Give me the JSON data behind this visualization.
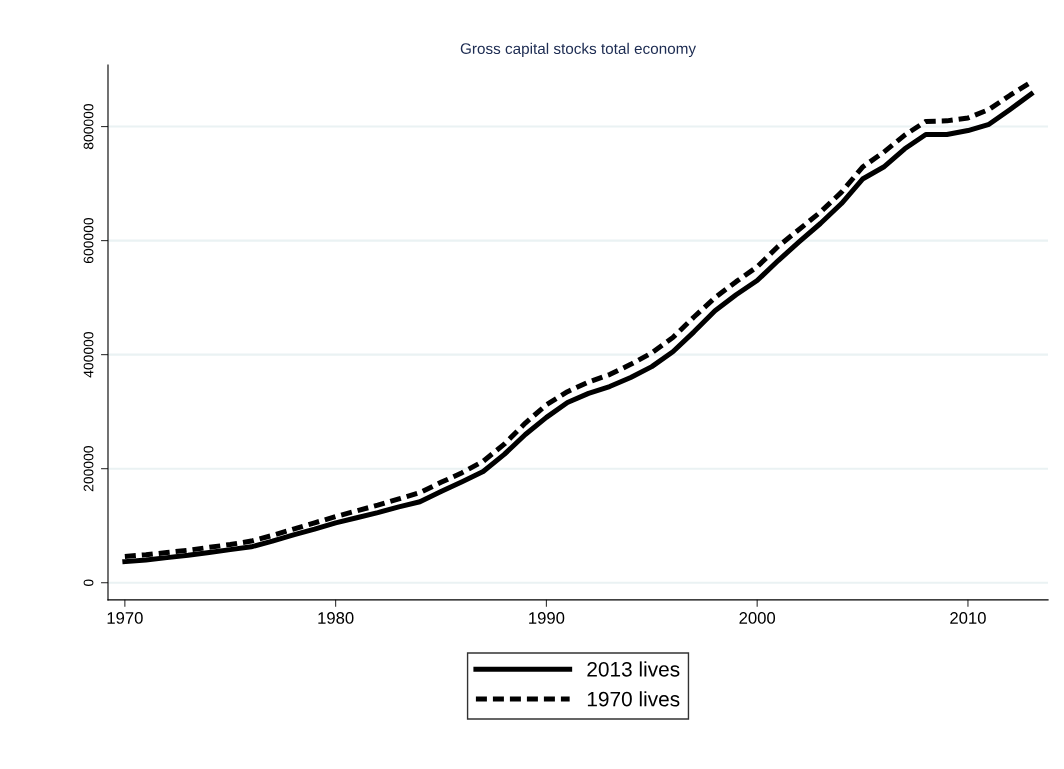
{
  "chart_data": {
    "type": "line",
    "title": "Gross capital stocks total economy",
    "x": [
      1970,
      1971,
      1972,
      1973,
      1974,
      1975,
      1976,
      1977,
      1978,
      1979,
      1980,
      1981,
      1982,
      1983,
      1984,
      1985,
      1986,
      1987,
      1988,
      1989,
      1990,
      1991,
      1992,
      1993,
      1994,
      1995,
      1996,
      1997,
      1998,
      1999,
      2000,
      2001,
      2002,
      2003,
      2004,
      2005,
      2006,
      2007,
      2008,
      2009,
      2010,
      2011,
      2012,
      2013
    ],
    "series": [
      {
        "name": "2013 lives",
        "color": "#000000",
        "line_style": "solid",
        "values": [
          37000,
          40000,
          44000,
          48000,
          53000,
          58000,
          63000,
          73000,
          84000,
          94000,
          105000,
          114000,
          123000,
          133000,
          142000,
          160000,
          177000,
          195000,
          225000,
          260000,
          290000,
          316000,
          332000,
          344000,
          360000,
          379000,
          405000,
          440000,
          477000,
          505000,
          530000,
          565000,
          598000,
          630000,
          665000,
          708000,
          729000,
          761000,
          786000,
          786000,
          793000,
          804000,
          830000,
          857000
        ]
      },
      {
        "name": "1970 lives",
        "color": "#000000",
        "line_style": "dashed",
        "values": [
          46000,
          49000,
          53000,
          57000,
          62000,
          67000,
          73000,
          83000,
          94000,
          105000,
          116000,
          126000,
          136000,
          147000,
          158000,
          176000,
          193000,
          213000,
          243000,
          280000,
          312000,
          335000,
          352000,
          365000,
          383000,
          403000,
          430000,
          466000,
          500000,
          528000,
          554000,
          590000,
          620000,
          650000,
          685000,
          729000,
          755000,
          785000,
          809000,
          810000,
          815000,
          830000,
          855000,
          878000
        ]
      }
    ],
    "xlim": [
      1969.2,
      2013.8
    ],
    "xticks": [
      1970,
      1980,
      1990,
      2000,
      2010
    ],
    "ylim": [
      -30000,
      908000
    ],
    "yticks": [
      0,
      200000,
      400000,
      600000,
      800000
    ],
    "grid": "y",
    "legend": "bottom",
    "marker": "none"
  }
}
